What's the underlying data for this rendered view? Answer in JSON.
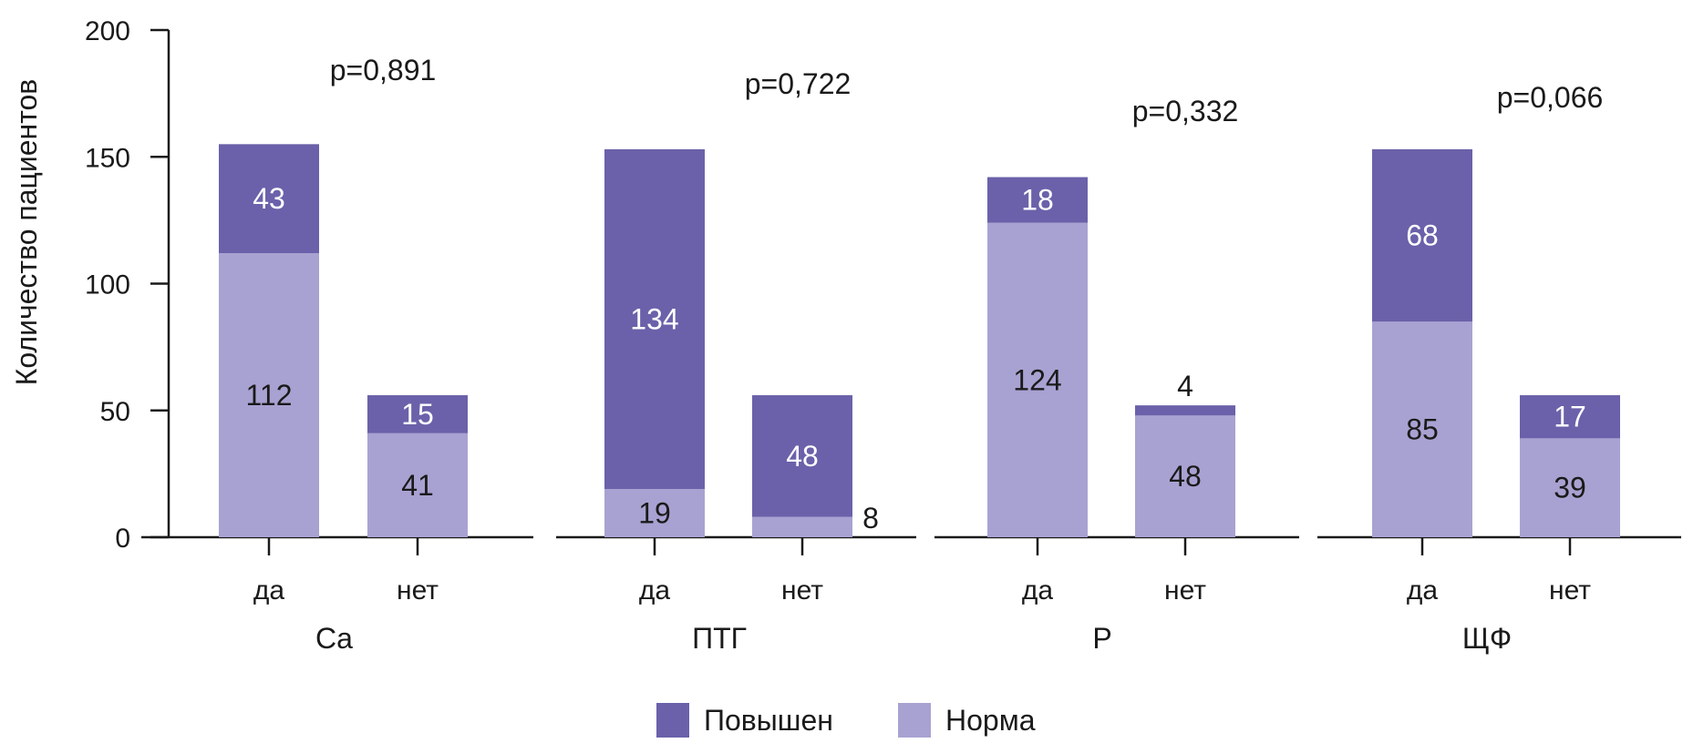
{
  "chart_data": {
    "type": "bar",
    "stacked": true,
    "ylabel": "Количество пациентов",
    "ylim": [
      0,
      200
    ],
    "yticks": [
      0,
      50,
      100,
      150,
      200
    ],
    "ytick_labels": [
      "0",
      "50",
      "100",
      "150",
      "200"
    ],
    "legend_position": "bottom-center",
    "series": [
      {
        "name": "Повышен",
        "color": "#6a61aa"
      },
      {
        "name": "Норма",
        "color": "#a8a2d2"
      }
    ],
    "groups": [
      {
        "name": "Ca",
        "pvalue": "p=0,891",
        "bars": [
          {
            "category": "да",
            "Норма": 112,
            "Повышен": 43,
            "norm_label": "112",
            "high_label": "43"
          },
          {
            "category": "нет",
            "Норма": 41,
            "Повышен": 15,
            "norm_label": "41",
            "high_label": "15"
          }
        ]
      },
      {
        "name": "ПТГ",
        "pvalue": "p=0,722",
        "bars": [
          {
            "category": "да",
            "Норма": 19,
            "Повышен": 134,
            "norm_label": "19",
            "high_label": "134"
          },
          {
            "category": "нет",
            "Норма": 8,
            "Повышен": 48,
            "norm_label": "8",
            "high_label": "48"
          }
        ]
      },
      {
        "name": "P",
        "pvalue": "p=0,332",
        "bars": [
          {
            "category": "да",
            "Норма": 124,
            "Повышен": 18,
            "norm_label": "124",
            "high_label": "18"
          },
          {
            "category": "нет",
            "Норма": 48,
            "Повышен": 4,
            "norm_label": "48",
            "high_label": "4"
          }
        ]
      },
      {
        "name": "ЩФ",
        "pvalue": "p=0,066",
        "bars": [
          {
            "category": "да",
            "Норма": 85,
            "Повышен": 68,
            "norm_label": "85",
            "high_label": "68"
          },
          {
            "category": "нет",
            "Норма": 39,
            "Повышен": 17,
            "norm_label": "39",
            "high_label": "17"
          }
        ]
      }
    ]
  }
}
